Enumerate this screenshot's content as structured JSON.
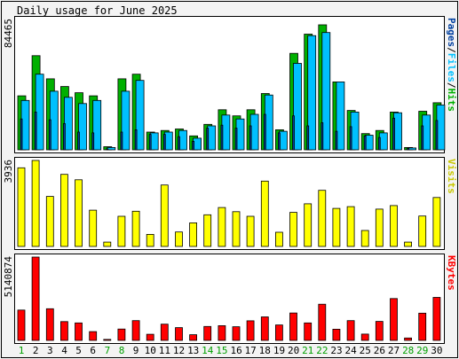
{
  "chart_data": {
    "type": "bar",
    "title": "Daily usage for June 2025",
    "categories": [
      "1",
      "2",
      "3",
      "4",
      "5",
      "6",
      "7",
      "8",
      "9",
      "10",
      "11",
      "12",
      "13",
      "14",
      "15",
      "16",
      "17",
      "18",
      "19",
      "20",
      "21",
      "22",
      "23",
      "24",
      "25",
      "26",
      "27",
      "28",
      "29",
      "30"
    ],
    "weekend_days": [
      "1",
      "7",
      "8",
      "14",
      "15",
      "21",
      "22",
      "28",
      "29"
    ],
    "colors": {
      "hits": "#00b000",
      "files": "#00c0ff",
      "pages": "#0040a0",
      "visits": "#ffff00",
      "kbytes": "#ff0000",
      "weekend_label": "#00a000",
      "weekday_label": "#000000"
    },
    "panels": [
      {
        "id": "hits",
        "ymax_label": "84465",
        "ymax": 84465,
        "legend": [
          {
            "text": "Pages",
            "color": "#0040a0"
          },
          {
            "text": "/",
            "color": "#000000"
          },
          {
            "text": "Files",
            "color": "#00c0ff"
          },
          {
            "text": "/",
            "color": "#000000"
          },
          {
            "text": "Hits",
            "color": "#00b000"
          }
        ],
        "series": [
          {
            "name": "Hits",
            "values": [
              35000,
              61000,
              46000,
              41000,
              37000,
              35000,
              2000,
              46000,
              49000,
              11500,
              12500,
              13500,
              9000,
              16500,
              26000,
              22000,
              26000,
              36500,
              13000,
              62500,
              75000,
              81000,
              44000,
              25500,
              10500,
              12500,
              24500,
              1500,
              25000,
              30500
            ]
          },
          {
            "name": "Files",
            "values": [
              32000,
              49000,
              38000,
              34000,
              30000,
              32000,
              1500,
              38000,
              45000,
              11000,
              11500,
              12500,
              7500,
              15500,
              22500,
              20000,
              23000,
              35500,
              12000,
              56000,
              74000,
              76000,
              44000,
              24500,
              9500,
              11000,
              24000,
              1200,
              22500,
              29000
            ]
          },
          {
            "name": "Pages",
            "values": [
              20000,
              24500,
              19500,
              17000,
              11500,
              11000,
              600,
              11500,
              13000,
              10000,
              10000,
              8500,
              5500,
              14000,
              16000,
              14000,
              15500,
              23000,
              11000,
              22000,
              15500,
              17500,
              12000,
              15000,
              9000,
              8000,
              20500,
              1000,
              15500,
              19000
            ]
          }
        ]
      },
      {
        "id": "visits",
        "ymax_label": "3936",
        "ymax": 3936,
        "legend": [
          {
            "text": "Visits",
            "color": "#c8c800"
          }
        ],
        "series": [
          {
            "name": "Visits",
            "values": [
              3600,
              3936,
              2290,
              3300,
              3050,
              1660,
              200,
              1380,
              1610,
              550,
              2810,
              660,
              1080,
              1450,
              1780,
              1590,
              1380,
              2990,
              650,
              1560,
              1950,
              2570,
              1740,
              1820,
              730,
              1710,
              1870,
              200,
              1390,
              2240
            ]
          }
        ]
      },
      {
        "id": "kbytes",
        "ymax_label": "5140874",
        "ymax": 5140874,
        "legend": [
          {
            "text": "KBytes",
            "color": "#ff0000"
          }
        ],
        "series": [
          {
            "name": "KBytes",
            "values": [
              1870000,
              5140874,
              1950000,
              1160000,
              1080000,
              540000,
              60000,
              700000,
              1220000,
              380000,
              1000000,
              790000,
              350000,
              860000,
              910000,
              840000,
              1210000,
              1450000,
              950000,
              1690000,
              1080000,
              2230000,
              690000,
              1220000,
              390000,
              1170000,
              2580000,
              150000,
              1680000,
              2650000
            ]
          }
        ]
      }
    ]
  }
}
